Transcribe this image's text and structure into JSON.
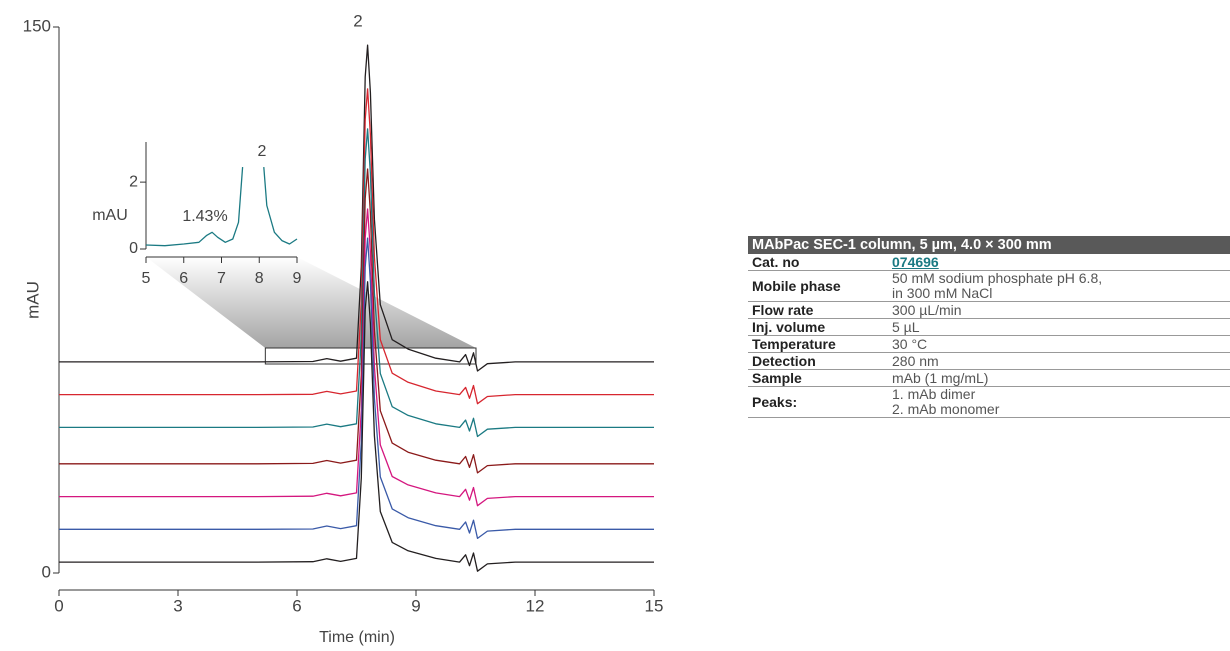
{
  "chart_data": [
    {
      "type": "line",
      "ylabel": "mAU",
      "xlabel": "Time (min)",
      "xlim": [
        0,
        15
      ],
      "xticks": [
        0,
        3,
        6,
        9,
        12,
        15
      ],
      "ylim": [
        0,
        150
      ],
      "yticks": [
        0,
        150
      ],
      "annotations": [
        "2"
      ],
      "x": [
        0,
        5,
        6.4,
        6.75,
        7.1,
        7.5,
        7.62,
        7.72,
        7.78,
        7.85,
        7.95,
        8.1,
        8.4,
        8.8,
        9.5,
        10.1,
        10.25,
        10.35,
        10.45,
        10.55,
        10.8,
        11.5,
        15
      ],
      "series": [
        {
          "color": "#231f20",
          "values": [
            58,
            58,
            58.1,
            58.9,
            58.2,
            59,
            84.1,
            136.3,
            145,
            132,
            97.2,
            73.7,
            64.1,
            61.5,
            59,
            58,
            60,
            57,
            60.5,
            55.5,
            57.5,
            58,
            58
          ]
        },
        {
          "color": "#d7262f",
          "values": [
            49,
            49,
            49.1,
            49.9,
            49.2,
            50,
            74.2,
            124.6,
            133,
            120.4,
            86.8,
            64.1,
            54.9,
            52.4,
            50,
            49,
            51,
            48,
            51.5,
            46.5,
            48.5,
            49,
            49
          ]
        },
        {
          "color": "#1b7a83",
          "values": [
            40,
            40,
            40.1,
            40.9,
            40.2,
            41,
            64.6,
            113.8,
            122,
            109.7,
            76.9,
            54.8,
            45.7,
            43.3,
            41,
            40,
            42,
            39,
            42.5,
            37.5,
            39.5,
            40,
            40
          ]
        },
        {
          "color": "#8b1a1a",
          "values": [
            30,
            30,
            30.1,
            30.9,
            30.2,
            31,
            54.3,
            102.9,
            111,
            98.9,
            66.5,
            44.6,
            35.7,
            33.2,
            31,
            30,
            32,
            29,
            32.5,
            27.5,
            29.5,
            30,
            30
          ]
        },
        {
          "color": "#d4177f",
          "values": [
            21,
            21,
            21.1,
            21.9,
            21.2,
            22,
            44.7,
            92.1,
            100,
            88.2,
            56.6,
            35.2,
            26.5,
            24.2,
            22,
            21,
            23,
            20,
            23.5,
            18.5,
            20.5,
            21,
            21
          ]
        },
        {
          "color": "#3a5aa8",
          "values": [
            12,
            12,
            12.1,
            12.9,
            12.2,
            13,
            36,
            84,
            92,
            80,
            48,
            26.4,
            17.6,
            15.2,
            13,
            12,
            14,
            11,
            14.5,
            9.5,
            11.5,
            12,
            12
          ]
        },
        {
          "color": "#231f20",
          "values": [
            3,
            3,
            3.1,
            3.9,
            3.2,
            4,
            26.1,
            72.3,
            80,
            68.5,
            37.7,
            16.9,
            8.4,
            6.1,
            4,
            3,
            5,
            2,
            5.5,
            0.5,
            2.5,
            3,
            3
          ]
        }
      ]
    },
    {
      "type": "line",
      "ylabel": "mAU",
      "xlim": [
        5,
        9
      ],
      "xticks": [
        5,
        6,
        7,
        8,
        9
      ],
      "ylim": [
        0,
        3.2
      ],
      "yticks": [
        0,
        2
      ],
      "annotations": [
        "1.43%",
        "2"
      ],
      "x": [
        5,
        5.5,
        6,
        6.4,
        6.6,
        6.75,
        6.9,
        7.1,
        7.3,
        7.45,
        7.56,
        7.8,
        8.12,
        8.2,
        8.4,
        8.6,
        8.8,
        9
      ],
      "series": [
        {
          "color": "#1b7a83",
          "values": [
            0.12,
            0.1,
            0.15,
            0.2,
            0.4,
            0.5,
            0.35,
            0.2,
            0.3,
            0.8,
            2.45,
            null,
            2.45,
            1.3,
            0.5,
            0.25,
            0.15,
            0.3
          ]
        }
      ]
    }
  ],
  "table": {
    "header": "MAbPac SEC-1 column, 5 µm, 4.0 × 300 mm",
    "rows": [
      {
        "label": "Cat. no",
        "value": [
          "074696"
        ]
      },
      {
        "label": "Mobile phase",
        "value": [
          "50 mM sodium phosphate pH 6.8,",
          "in 300 mM NaCl"
        ]
      },
      {
        "label": "Flow rate",
        "value": [
          "300 µL/min"
        ]
      },
      {
        "label": "Inj. volume",
        "value": [
          "5 µL"
        ]
      },
      {
        "label": "Temperature",
        "value": [
          "30 °C"
        ]
      },
      {
        "label": "Detection",
        "value": [
          "280 nm"
        ]
      },
      {
        "label": "Sample",
        "value": [
          "mAb (1 mg/mL)"
        ]
      },
      {
        "label": "Peaks:",
        "value": [
          "1. mAb dimer",
          "2. mAb monomer"
        ]
      }
    ]
  }
}
